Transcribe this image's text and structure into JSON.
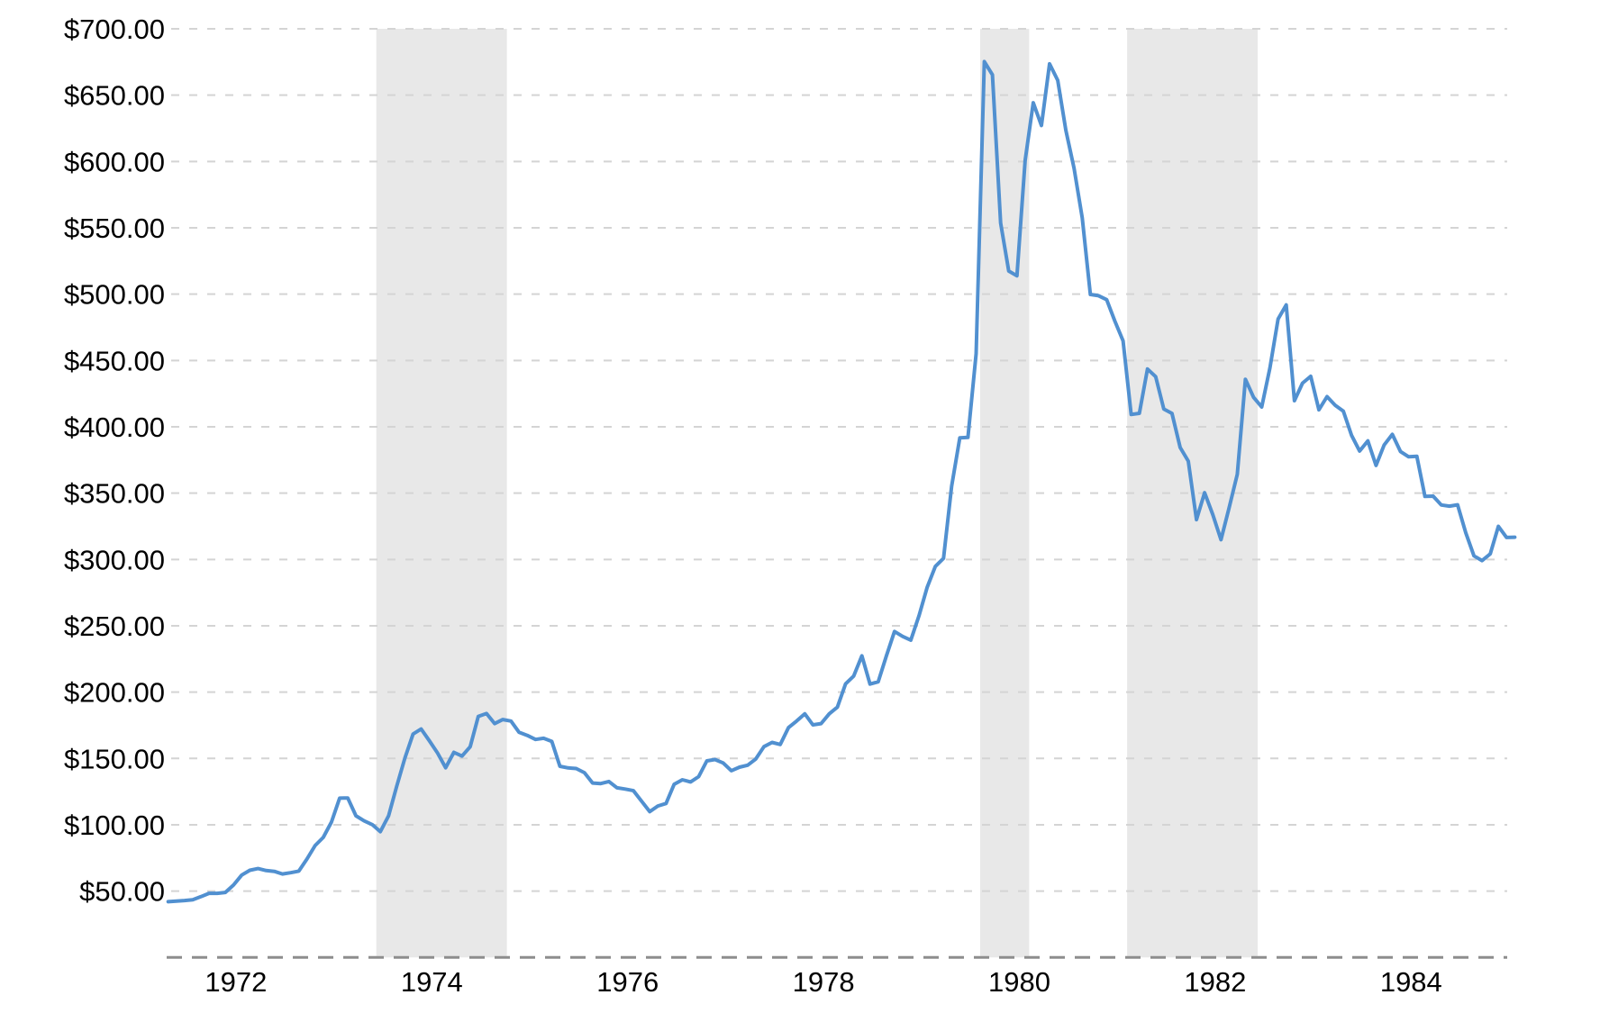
{
  "chart_data": {
    "type": "line",
    "description": "Historical gold price per ounce, monthly, 1971-1985, with recession shading",
    "xlabel": "",
    "ylabel": "",
    "legend": "none",
    "grid": "horizontal dashed",
    "ylim": [
      0,
      700
    ],
    "y_tick_step": 50,
    "y_tick_labels": [
      "$700.00",
      "$650.00",
      "$600.00",
      "$550.00",
      "$500.00",
      "$450.00",
      "$400.00",
      "$350.00",
      "$300.00",
      "$250.00",
      "$200.00",
      "$150.00",
      "$100.00",
      "$50.00"
    ],
    "x_tick_labels": [
      "1972",
      "1974",
      "1976",
      "1978",
      "1980",
      "1982",
      "1984"
    ],
    "x_tick_years": [
      1972,
      1974,
      1976,
      1978,
      1980,
      1982,
      1984
    ],
    "series": [
      {
        "name": "gold-price-usd-per-oz",
        "frequency": "monthly",
        "start_month": "1971-09",
        "end_month": "1985-06",
        "values": [
          42.0,
          42.5,
          42.9,
          43.5,
          45.8,
          48.3,
          48.3,
          49.0,
          54.6,
          62.1,
          65.7,
          67.0,
          65.5,
          64.9,
          62.9,
          63.9,
          65.1,
          74.2,
          84.4,
          90.5,
          102.0,
          120.1,
          120.2,
          106.8,
          103.0,
          100.1,
          94.8,
          106.7,
          129.2,
          150.2,
          168.4,
          172.2,
          163.3,
          154.1,
          143.0,
          154.6,
          151.8,
          158.8,
          181.7,
          183.9,
          176.3,
          179.3,
          178.2,
          169.7,
          167.4,
          164.3,
          165.2,
          162.8,
          144.1,
          142.9,
          142.4,
          139.3,
          131.5,
          131.1,
          132.6,
          127.9,
          126.9,
          125.7,
          117.8,
          109.9,
          114.2,
          116.1,
          130.5,
          133.9,
          132.3,
          136.3,
          148.2,
          149.2,
          146.6,
          140.8,
          143.4,
          144.9,
          149.6,
          158.9,
          162.1,
          160.5,
          173.2,
          178.2,
          183.7,
          175.3,
          176.3,
          183.7,
          188.7,
          206.3,
          212.1,
          227.4,
          206.1,
          207.8,
          227.3,
          245.7,
          242.0,
          239.2,
          257.6,
          279.1,
          294.7,
          300.8,
          355.1,
          391.7,
          392.0,
          455.1,
          675.3,
          665.3,
          553.6,
          517.4,
          513.8,
          600.7,
          644.3,
          627.1,
          673.6,
          661.1,
          623.5,
          594.9,
          557.4,
          499.8,
          498.8,
          495.8,
          479.7,
          464.8,
          409.3,
          410.2,
          443.6,
          437.8,
          413.4,
          410.1,
          384.4,
          374.1,
          330.0,
          350.3,
          333.8,
          314.9,
          338.9,
          364.2,
          435.8,
          422.2,
          414.9,
          444.3,
          481.3,
          491.9,
          419.7,
          432.9,
          438.1,
          412.8,
          422.7,
          416.2,
          411.8,
          393.6,
          381.7,
          389.4,
          370.9,
          386.3,
          394.3,
          381.4,
          377.4,
          377.7,
          347.5,
          347.7,
          341.1,
          340.2,
          341.2,
          320.1,
          302.7,
          299.1,
          304.2,
          324.9,
          316.6,
          316.8
        ]
      }
    ],
    "recession_bands": [
      {
        "from": "1973-11",
        "to": "1975-03"
      },
      {
        "from": "1980-01",
        "to": "1980-07"
      },
      {
        "from": "1981-07",
        "to": "1982-11"
      }
    ],
    "colors": {
      "line": "#5190d0",
      "gridline": "#d4d4d4",
      "zero_axis": "#8d8d8d",
      "recession_band": "#e8e8e8",
      "label": "#000000",
      "background": "#ffffff"
    }
  }
}
